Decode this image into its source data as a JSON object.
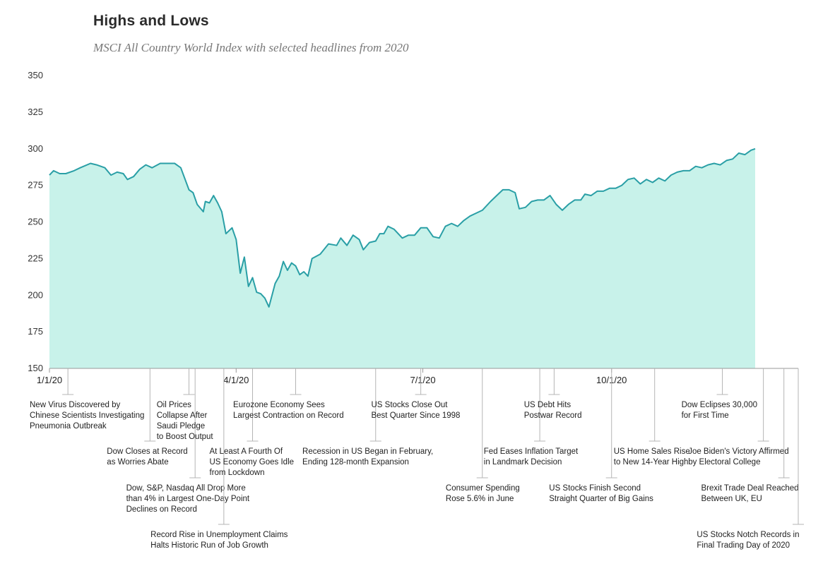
{
  "chart_data": {
    "type": "area",
    "title": "Highs and Lows",
    "subtitle": "MSCI All Country World Index with selected headlines from 2020",
    "ylim": [
      150,
      350
    ],
    "yticks": [
      150,
      175,
      200,
      225,
      250,
      275,
      300,
      325,
      350
    ],
    "xticks": [
      {
        "label": "1/1/20",
        "date": "2020-01-01"
      },
      {
        "label": "4/1/20",
        "date": "2020-04-01"
      },
      {
        "label": "7/1/20",
        "date": "2020-07-01"
      },
      {
        "label": "10/1/20",
        "date": "2020-10-01"
      }
    ],
    "x_start": "2020-01-01",
    "x_end": "2020-12-31",
    "line_color": "#2a9fa6",
    "fill_color": "#c8f2ea",
    "grid": false,
    "series": [
      {
        "points": [
          [
            "2020-01-01",
            282
          ],
          [
            "2020-01-03",
            285
          ],
          [
            "2020-01-06",
            283
          ],
          [
            "2020-01-09",
            283
          ],
          [
            "2020-01-13",
            285
          ],
          [
            "2020-01-16",
            287
          ],
          [
            "2020-01-21",
            290
          ],
          [
            "2020-01-24",
            289
          ],
          [
            "2020-01-28",
            287
          ],
          [
            "2020-01-31",
            282
          ],
          [
            "2020-02-03",
            284
          ],
          [
            "2020-02-06",
            283
          ],
          [
            "2020-02-08",
            279
          ],
          [
            "2020-02-11",
            281
          ],
          [
            "2020-02-14",
            286
          ],
          [
            "2020-02-17",
            289
          ],
          [
            "2020-02-20",
            287
          ],
          [
            "2020-02-24",
            290
          ],
          [
            "2020-02-27",
            290
          ],
          [
            "2020-03-02",
            290
          ],
          [
            "2020-03-05",
            287
          ],
          [
            "2020-03-09",
            272
          ],
          [
            "2020-03-11",
            270
          ],
          [
            "2020-03-13",
            262
          ],
          [
            "2020-03-16",
            257
          ],
          [
            "2020-03-17",
            264
          ],
          [
            "2020-03-19",
            263
          ],
          [
            "2020-03-21",
            268
          ],
          [
            "2020-03-23",
            263
          ],
          [
            "2020-03-25",
            257
          ],
          [
            "2020-03-27",
            242
          ],
          [
            "2020-03-30",
            246
          ],
          [
            "2020-04-01",
            238
          ],
          [
            "2020-04-03",
            215
          ],
          [
            "2020-04-05",
            226
          ],
          [
            "2020-04-07",
            206
          ],
          [
            "2020-04-09",
            212
          ],
          [
            "2020-04-11",
            202
          ],
          [
            "2020-04-13",
            201
          ],
          [
            "2020-04-15",
            198
          ],
          [
            "2020-04-17",
            192
          ],
          [
            "2020-04-20",
            208
          ],
          [
            "2020-04-22",
            213
          ],
          [
            "2020-04-24",
            223
          ],
          [
            "2020-04-26",
            217
          ],
          [
            "2020-04-28",
            222
          ],
          [
            "2020-04-30",
            220
          ],
          [
            "2020-05-02",
            214
          ],
          [
            "2020-05-04",
            216
          ],
          [
            "2020-05-06",
            213
          ],
          [
            "2020-05-08",
            225
          ],
          [
            "2020-05-12",
            228
          ],
          [
            "2020-05-16",
            235
          ],
          [
            "2020-05-20",
            234
          ],
          [
            "2020-05-22",
            239
          ],
          [
            "2020-05-25",
            234
          ],
          [
            "2020-05-28",
            241
          ],
          [
            "2020-05-31",
            238
          ],
          [
            "2020-06-02",
            231
          ],
          [
            "2020-06-05",
            236
          ],
          [
            "2020-06-08",
            237
          ],
          [
            "2020-06-10",
            242
          ],
          [
            "2020-06-12",
            242
          ],
          [
            "2020-06-14",
            247
          ],
          [
            "2020-06-17",
            245
          ],
          [
            "2020-06-21",
            239
          ],
          [
            "2020-06-24",
            241
          ],
          [
            "2020-06-27",
            241
          ],
          [
            "2020-06-30",
            246
          ],
          [
            "2020-07-03",
            246
          ],
          [
            "2020-07-06",
            240
          ],
          [
            "2020-07-09",
            239
          ],
          [
            "2020-07-12",
            247
          ],
          [
            "2020-07-15",
            249
          ],
          [
            "2020-07-18",
            247
          ],
          [
            "2020-07-21",
            251
          ],
          [
            "2020-07-24",
            254
          ],
          [
            "2020-07-27",
            256
          ],
          [
            "2020-07-30",
            258
          ],
          [
            "2020-08-03",
            264
          ],
          [
            "2020-08-06",
            268
          ],
          [
            "2020-08-09",
            272
          ],
          [
            "2020-08-12",
            272
          ],
          [
            "2020-08-15",
            270
          ],
          [
            "2020-08-17",
            259
          ],
          [
            "2020-08-20",
            260
          ],
          [
            "2020-08-23",
            264
          ],
          [
            "2020-08-26",
            265
          ],
          [
            "2020-08-29",
            265
          ],
          [
            "2020-09-01",
            268
          ],
          [
            "2020-09-04",
            262
          ],
          [
            "2020-09-07",
            258
          ],
          [
            "2020-09-10",
            262
          ],
          [
            "2020-09-13",
            265
          ],
          [
            "2020-09-16",
            265
          ],
          [
            "2020-09-18",
            269
          ],
          [
            "2020-09-21",
            268
          ],
          [
            "2020-09-24",
            271
          ],
          [
            "2020-09-27",
            271
          ],
          [
            "2020-09-30",
            273
          ],
          [
            "2020-10-03",
            273
          ],
          [
            "2020-10-06",
            275
          ],
          [
            "2020-10-09",
            279
          ],
          [
            "2020-10-12",
            280
          ],
          [
            "2020-10-15",
            276
          ],
          [
            "2020-10-18",
            279
          ],
          [
            "2020-10-21",
            277
          ],
          [
            "2020-10-24",
            280
          ],
          [
            "2020-10-27",
            278
          ],
          [
            "2020-10-30",
            282
          ],
          [
            "2020-11-02",
            284
          ],
          [
            "2020-11-05",
            285
          ],
          [
            "2020-11-08",
            285
          ],
          [
            "2020-11-11",
            288
          ],
          [
            "2020-11-14",
            287
          ],
          [
            "2020-11-17",
            289
          ],
          [
            "2020-11-20",
            290
          ],
          [
            "2020-11-23",
            289
          ],
          [
            "2020-11-26",
            292
          ],
          [
            "2020-11-29",
            293
          ],
          [
            "2020-12-02",
            297
          ],
          [
            "2020-12-05",
            296
          ],
          [
            "2020-12-08",
            299
          ],
          [
            "2020-12-10",
            300
          ]
        ]
      }
    ],
    "annotations": [
      {
        "date": "2020-01-10",
        "lines": [
          "New Virus Discovered by",
          "Chinese Scientists Investigating",
          "Pneumonia Outbreak"
        ],
        "level": 0
      },
      {
        "date": "2020-02-19",
        "lines": [
          "Dow Closes at Record",
          "as Worries Abate"
        ],
        "level": 1
      },
      {
        "date": "2020-03-12",
        "lines": [
          "Dow, S&P, Nasdaq All Drop More",
          "than 4% in Largest One-Day Point",
          "Declines on Record"
        ],
        "level": 2
      },
      {
        "date": "2020-03-09",
        "lines": [
          "Oil Prices",
          "Collapse After",
          "Saudi Pledge",
          "to Boost Output"
        ],
        "level": 0
      },
      {
        "date": "2020-03-26",
        "lines": [
          "Record Rise in Unemployment Claims",
          "Halts Historic Run of Job Growth"
        ],
        "level": 3
      },
      {
        "date": "2020-04-09",
        "lines": [
          "At Least A Fourth Of",
          "US Economy Goes Idle",
          "from Lockdown"
        ],
        "level": 1
      },
      {
        "date": "2020-04-30",
        "lines": [
          "Eurozone Economy Sees",
          "Largest Contraction on Record"
        ],
        "level": 0
      },
      {
        "date": "2020-06-08",
        "lines": [
          "Recession in US Began in February,",
          "Ending 128-month Expansion"
        ],
        "level": 1
      },
      {
        "date": "2020-06-30",
        "lines": [
          "US Stocks Close Out",
          "Best Quarter Since 1998"
        ],
        "level": 0
      },
      {
        "date": "2020-07-30",
        "lines": [
          "Consumer Spending",
          "Rose 5.6% in June"
        ],
        "level": 2
      },
      {
        "date": "2020-08-27",
        "lines": [
          "Fed Eases Inflation Target",
          "in Landmark Decision"
        ],
        "level": 1
      },
      {
        "date": "2020-09-03",
        "lines": [
          "US Debt Hits",
          "Postwar Record"
        ],
        "level": 0
      },
      {
        "date": "2020-10-01",
        "lines": [
          "US Stocks Finish Second",
          "Straight Quarter of Big Gains"
        ],
        "level": 2
      },
      {
        "date": "2020-10-22",
        "lines": [
          "US Home Sales Rise",
          "to New 14-Year High"
        ],
        "level": 1
      },
      {
        "date": "2020-11-24",
        "lines": [
          "Dow Eclipses 30,000",
          "for First Time"
        ],
        "level": 0
      },
      {
        "date": "2020-12-14",
        "lines": [
          "Joe Biden's Victory Affirmed",
          "by Electoral College"
        ],
        "level": 1
      },
      {
        "date": "2020-12-24",
        "lines": [
          "Brexit Trade Deal Reached",
          "Between UK, EU"
        ],
        "level": 2
      },
      {
        "date": "2020-12-31",
        "lines": [
          "US Stocks Notch Records in",
          "Final Trading Day of 2020"
        ],
        "level": 3
      }
    ]
  }
}
